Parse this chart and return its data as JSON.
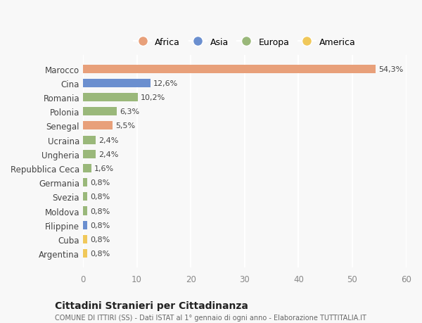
{
  "categories": [
    "Argentina",
    "Cuba",
    "Filippine",
    "Moldova",
    "Svezia",
    "Germania",
    "Repubblica Ceca",
    "Ungheria",
    "Ucraina",
    "Senegal",
    "Polonia",
    "Romania",
    "Cina",
    "Marocco"
  ],
  "values": [
    0.8,
    0.8,
    0.8,
    0.8,
    0.8,
    0.8,
    1.6,
    2.4,
    2.4,
    5.5,
    6.3,
    10.2,
    12.6,
    54.3
  ],
  "colors": [
    "#f0c85a",
    "#f0c85a",
    "#6b8fcf",
    "#9ab87a",
    "#9ab87a",
    "#9ab87a",
    "#9ab87a",
    "#9ab87a",
    "#9ab87a",
    "#e8a07a",
    "#9ab87a",
    "#9ab87a",
    "#6b8fcf",
    "#e8a07a"
  ],
  "labels": [
    "0,8%",
    "0,8%",
    "0,8%",
    "0,8%",
    "0,8%",
    "0,8%",
    "1,6%",
    "2,4%",
    "2,4%",
    "5,5%",
    "6,3%",
    "10,2%",
    "12,6%",
    "54,3%"
  ],
  "legend": [
    {
      "label": "Africa",
      "color": "#e8a07a"
    },
    {
      "label": "Asia",
      "color": "#6b8fcf"
    },
    {
      "label": "Europa",
      "color": "#9ab87a"
    },
    {
      "label": "America",
      "color": "#f0c85a"
    }
  ],
  "xlim": [
    0,
    60
  ],
  "xticks": [
    0,
    10,
    20,
    30,
    40,
    50,
    60
  ],
  "title_main": "Cittadini Stranieri per Cittadinanza",
  "title_sub": "COMUNE DI ITTIRI (SS) - Dati ISTAT al 1° gennaio di ogni anno - Elaborazione TUTTITALIA.IT",
  "bg_color": "#f8f8f8",
  "grid_color": "#ffffff",
  "bar_height": 0.6
}
